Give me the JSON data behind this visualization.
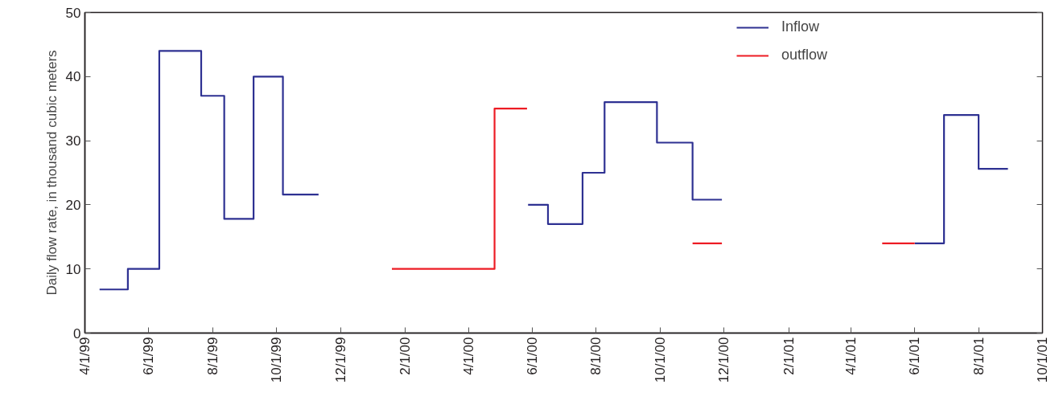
{
  "chart_data": {
    "type": "step",
    "ylabel": "Daily flow rate, in thousand cubic meters",
    "xlim": [
      "1999-04-01",
      "2001-10-01"
    ],
    "xticks": [
      {
        "value": "1999-04-01",
        "label": "4/1/99"
      },
      {
        "value": "1999-06-01",
        "label": "6/1/99"
      },
      {
        "value": "1999-08-01",
        "label": "8/1/99"
      },
      {
        "value": "1999-10-01",
        "label": "10/1/99"
      },
      {
        "value": "1999-12-01",
        "label": "12/1/99"
      },
      {
        "value": "2000-02-01",
        "label": "2/1/00"
      },
      {
        "value": "2000-04-01",
        "label": "4/1/00"
      },
      {
        "value": "2000-06-01",
        "label": "6/1/00"
      },
      {
        "value": "2000-08-01",
        "label": "8/1/00"
      },
      {
        "value": "2000-10-01",
        "label": "10/1/00"
      },
      {
        "value": "2000-12-01",
        "label": "12/1/00"
      },
      {
        "value": "2001-02-01",
        "label": "2/1/01"
      },
      {
        "value": "2001-04-01",
        "label": "4/1/01"
      },
      {
        "value": "2001-06-01",
        "label": "6/1/01"
      },
      {
        "value": "2001-08-01",
        "label": "8/1/01"
      },
      {
        "value": "2001-10-01",
        "label": "10/1/01"
      }
    ],
    "ylim": [
      0,
      50
    ],
    "yticks": [
      0,
      10,
      20,
      30,
      40,
      50
    ],
    "grid": false,
    "legend": "top right",
    "marker": "none",
    "line_style": "solid",
    "series": [
      {
        "name": "Inflow",
        "color": "#2e3192",
        "x": [
          "1999-04-15",
          "1999-05-12",
          "1999-06-11",
          "1999-07-21",
          "1999-08-12",
          "1999-09-09",
          "1999-10-07",
          "1999-11-10",
          "1999-12-01",
          "2000-05-28",
          "2000-06-16",
          "2000-07-19",
          "2000-08-09",
          "2000-09-28",
          "2000-11-01",
          "2000-11-29",
          "2001-01-01",
          "2001-06-01",
          "2001-06-29",
          "2001-08-01",
          "2001-08-29"
        ],
        "values": [
          6.8,
          10,
          44,
          37,
          17.8,
          40,
          21.6,
          21.6,
          null,
          20,
          17,
          25,
          36,
          29.7,
          20.8,
          20.8,
          null,
          14,
          34,
          25.6,
          25.6
        ]
      },
      {
        "name": "outflow",
        "color": "#ed1c24",
        "x": [
          "2000-01-19",
          "2000-04-26",
          "2000-05-27",
          "2000-06-01",
          "2000-11-01",
          "2000-11-29",
          "2001-01-01",
          "2001-05-01",
          "2001-06-01"
        ],
        "values": [
          10,
          35,
          35,
          null,
          14,
          14,
          null,
          14,
          14
        ]
      }
    ]
  }
}
